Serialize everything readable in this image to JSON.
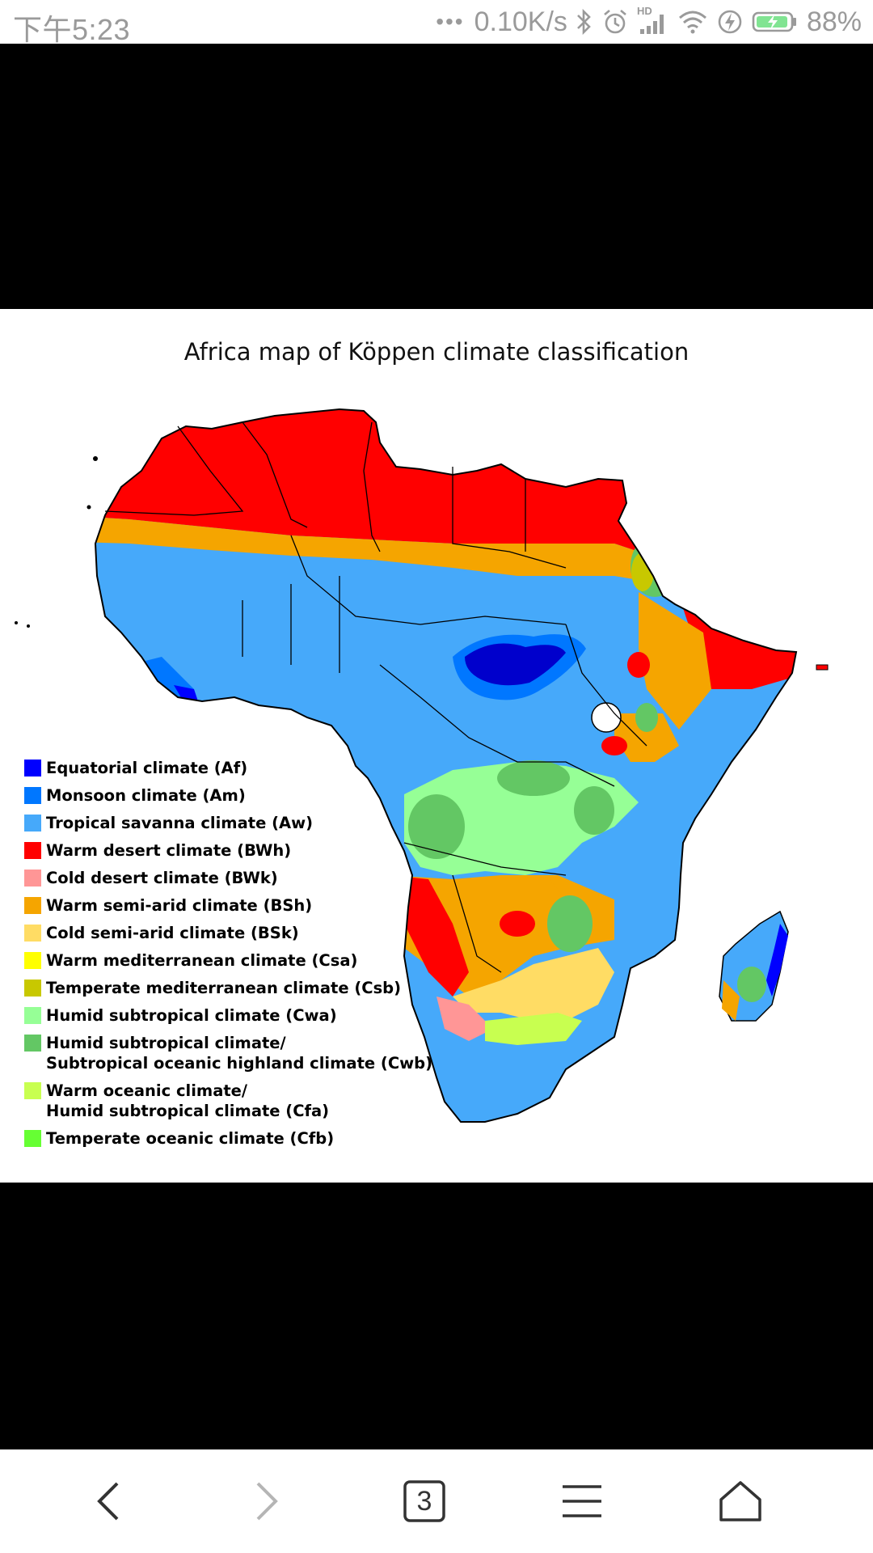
{
  "status_bar": {
    "time": "下午5:23",
    "net_speed": "0.10K/s",
    "hd_label": "HD",
    "battery": "88%"
  },
  "map": {
    "title": "Africa map of Köppen climate classification",
    "legend": [
      {
        "label": "Equatorial climate (Af)",
        "color": "#0000ff"
      },
      {
        "label": "Monsoon climate (Am)",
        "color": "#0077ff"
      },
      {
        "label": "Tropical savanna climate (Aw)",
        "color": "#46a9fa"
      },
      {
        "label": "Warm desert climate (BWh)",
        "color": "#ff0000"
      },
      {
        "label": "Cold desert climate (BWk)",
        "color": "#ff9696"
      },
      {
        "label": "Warm semi-arid climate (BSh)",
        "color": "#f5a500"
      },
      {
        "label": "Cold semi-arid climate (BSk)",
        "color": "#ffdc64"
      },
      {
        "label": "Warm mediterranean climate (Csa)",
        "color": "#ffff00"
      },
      {
        "label": "Temperate mediterranean climate (Csb)",
        "color": "#c8c800"
      },
      {
        "label": "Humid subtropical climate (Cwa)",
        "color": "#96ff96"
      },
      {
        "label": "Humid subtropical climate/\nSubtropical oceanic highland climate (Cwb)",
        "color": "#63c764"
      },
      {
        "label": "Warm oceanic climate/\nHumid subtropical climate (Cfa)",
        "color": "#c8ff50"
      },
      {
        "label": "Temperate oceanic climate (Cfb)",
        "color": "#66ff33"
      }
    ]
  },
  "nav": {
    "tab_count": "3"
  }
}
